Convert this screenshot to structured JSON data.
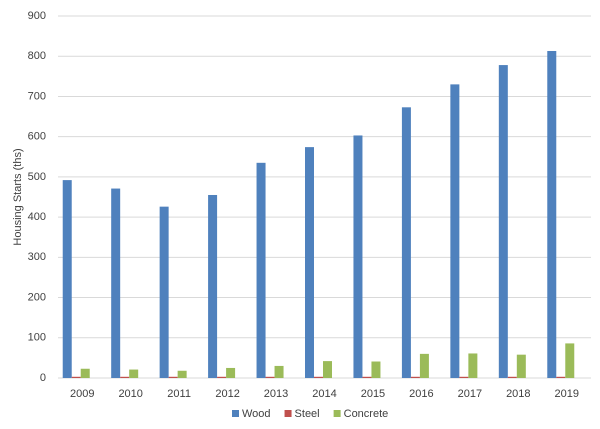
{
  "chart_data": {
    "type": "bar",
    "y_label": "Housing Starts (ths)",
    "categories": [
      "2009",
      "2010",
      "2011",
      "2012",
      "2013",
      "2014",
      "2015",
      "2016",
      "2017",
      "2018",
      "2019"
    ],
    "series": [
      {
        "name": "Wood",
        "color": "#4f81bd",
        "values": [
          492,
          471,
          426,
          455,
          535,
          574,
          603,
          673,
          730,
          778,
          813
        ]
      },
      {
        "name": "Steel",
        "color": "#c0504d",
        "values": [
          3,
          3,
          3,
          3,
          3,
          3,
          3,
          3,
          3,
          3,
          3
        ]
      },
      {
        "name": "Concrete",
        "color": "#9bbb59",
        "values": [
          23,
          21,
          18,
          25,
          30,
          42,
          41,
          60,
          61,
          58,
          86
        ]
      }
    ],
    "ylim": [
      0,
      900
    ],
    "yticks": [
      0,
      100,
      200,
      300,
      400,
      500,
      600,
      700,
      800,
      900
    ],
    "grid": true,
    "legend": "bottom"
  }
}
